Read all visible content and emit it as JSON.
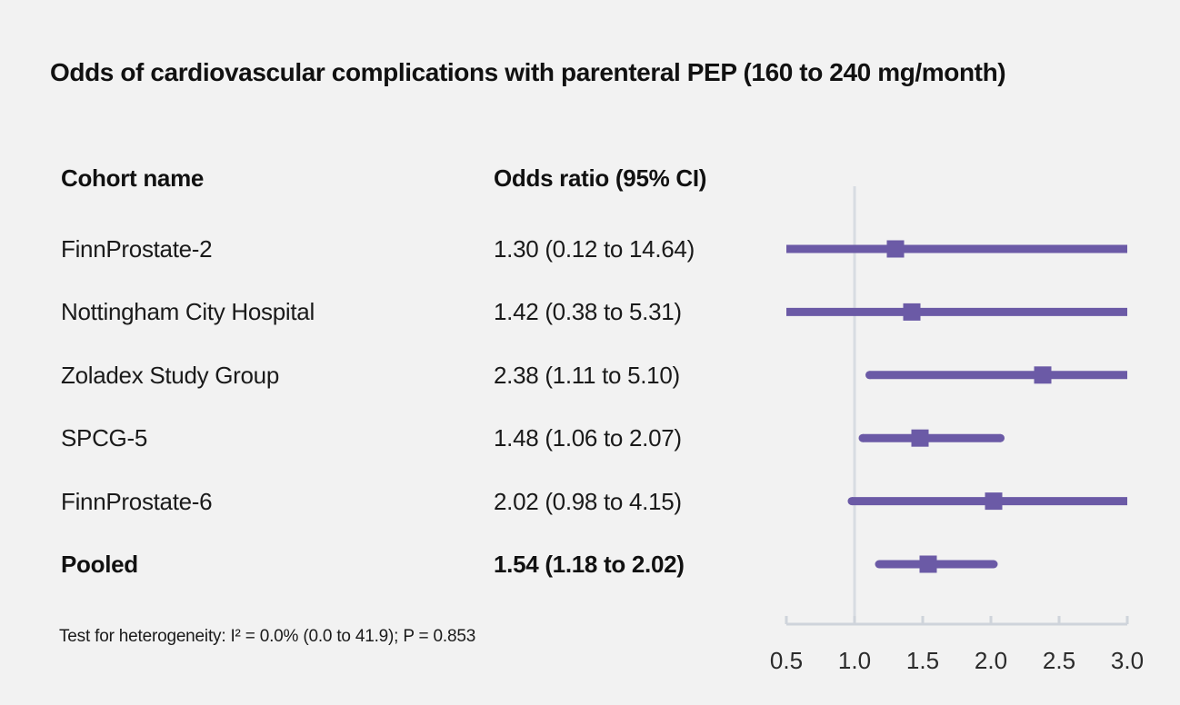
{
  "chart_data": {
    "type": "forest",
    "title": "Odds of cardiovascular complications with parenteral PEP (160 to 240 mg/month)",
    "columns": {
      "cohort": "Cohort name",
      "odds_ratio": "Odds ratio (95% CI)"
    },
    "rows": [
      {
        "name": "FinnProstate-2",
        "or_text": "1.30 (0.12 to 14.64)",
        "est": 1.3,
        "lo": 0.12,
        "hi": 14.64,
        "pooled": false
      },
      {
        "name": "Nottingham City Hospital",
        "or_text": "1.42 (0.38 to 5.31)",
        "est": 1.42,
        "lo": 0.38,
        "hi": 5.31,
        "pooled": false
      },
      {
        "name": "Zoladex Study Group",
        "or_text": "2.38 (1.11 to 5.10)",
        "est": 2.38,
        "lo": 1.11,
        "hi": 5.1,
        "pooled": false
      },
      {
        "name": "SPCG-5",
        "or_text": "1.48 (1.06 to 2.07)",
        "est": 1.48,
        "lo": 1.06,
        "hi": 2.07,
        "pooled": false
      },
      {
        "name": "FinnProstate-6",
        "or_text": "2.02 (0.98 to 4.15)",
        "est": 2.02,
        "lo": 0.98,
        "hi": 4.15,
        "pooled": false
      },
      {
        "name": "Pooled",
        "or_text": "1.54 (1.18 to 2.02)",
        "est": 1.54,
        "lo": 1.18,
        "hi": 2.02,
        "pooled": true
      }
    ],
    "x_axis": {
      "min": 0.5,
      "max": 3.0,
      "ticks": [
        0.5,
        1.0,
        1.5,
        2.0,
        2.5,
        3.0
      ],
      "tick_labels": [
        "0.5",
        "1.0",
        "1.5",
        "2.0",
        "2.5",
        "3.0"
      ],
      "reference_value": 1.0
    },
    "footnote": "Test for heterogeneity: I² = 0.0% (0.0 to 41.9); P = 0.853",
    "colors": {
      "marker": "#6b5aa6",
      "axis_line": "#cfd4db",
      "reference_line": "#d8dce2",
      "background": "#f2f2f2",
      "text": "#1a1a1a"
    }
  }
}
